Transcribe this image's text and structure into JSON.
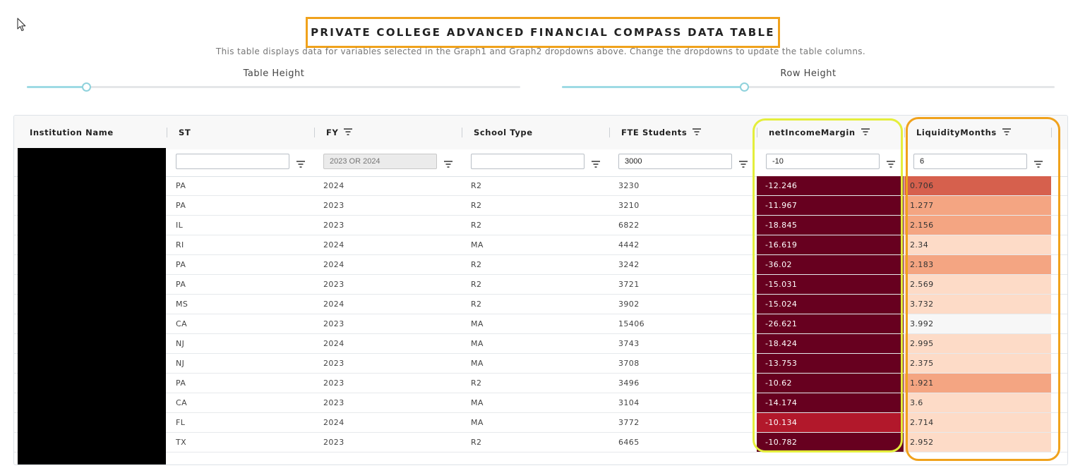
{
  "title": "PRIVATE COLLEGE ADVANCED FINANCIAL COMPASS DATA TABLE",
  "subtitle": "This table displays data for variables selected in the Graph1 and Graph2 dropdowns above. Change the dropdowns to update the table columns.",
  "sliders": {
    "table_height_label": "Table Height",
    "table_height_value": 0.12,
    "row_height_label": "Row Height",
    "row_height_value": 0.37
  },
  "columns": [
    {
      "key": "name",
      "label": "Institution Name",
      "filter_icon": false
    },
    {
      "key": "st",
      "label": "ST",
      "filter_icon": false
    },
    {
      "key": "fy",
      "label": "FY",
      "filter_icon": true
    },
    {
      "key": "type",
      "label": "School Type",
      "filter_icon": false
    },
    {
      "key": "fte",
      "label": "FTE Students",
      "filter_icon": true
    },
    {
      "key": "nim",
      "label": "netIncomeMargin",
      "filter_icon": true
    },
    {
      "key": "liq",
      "label": "LiquidityMonths",
      "filter_icon": true
    }
  ],
  "filters": {
    "st": "",
    "fy_placeholder": "2023 OR 2024",
    "type": "",
    "fte": "3000",
    "nim": "-10",
    "liq": "6"
  },
  "rows": [
    {
      "st": "PA",
      "fy": "2024",
      "type": "R2",
      "fte": "3230",
      "nim": "-12.246",
      "liq": "0.706",
      "nim_color": "#67001f",
      "liq_color": "#d6604d"
    },
    {
      "st": "PA",
      "fy": "2023",
      "type": "R2",
      "fte": "3210",
      "nim": "-11.967",
      "liq": "1.277",
      "nim_color": "#67001f",
      "liq_color": "#f4a582"
    },
    {
      "st": "IL",
      "fy": "2023",
      "type": "R2",
      "fte": "6822",
      "nim": "-18.845",
      "liq": "2.156",
      "nim_color": "#67001f",
      "liq_color": "#f4a582"
    },
    {
      "st": "RI",
      "fy": "2024",
      "type": "MA",
      "fte": "4442",
      "nim": "-16.619",
      "liq": "2.34",
      "nim_color": "#67001f",
      "liq_color": "#fddbc7"
    },
    {
      "st": "PA",
      "fy": "2024",
      "type": "R2",
      "fte": "3242",
      "nim": "-36.02",
      "liq": "2.183",
      "nim_color": "#67001f",
      "liq_color": "#f4a582"
    },
    {
      "st": "PA",
      "fy": "2023",
      "type": "R2",
      "fte": "3721",
      "nim": "-15.031",
      "liq": "2.569",
      "nim_color": "#67001f",
      "liq_color": "#fddbc7"
    },
    {
      "st": "MS",
      "fy": "2024",
      "type": "R2",
      "fte": "3902",
      "nim": "-15.024",
      "liq": "3.732",
      "nim_color": "#67001f",
      "liq_color": "#fddbc7"
    },
    {
      "st": "CA",
      "fy": "2023",
      "type": "MA",
      "fte": "15406",
      "nim": "-26.621",
      "liq": "3.992",
      "nim_color": "#67001f",
      "liq_color": "#f7f7f7"
    },
    {
      "st": "NJ",
      "fy": "2024",
      "type": "MA",
      "fte": "3743",
      "nim": "-18.424",
      "liq": "2.995",
      "nim_color": "#67001f",
      "liq_color": "#fddbc7"
    },
    {
      "st": "NJ",
      "fy": "2023",
      "type": "MA",
      "fte": "3708",
      "nim": "-13.753",
      "liq": "2.375",
      "nim_color": "#67001f",
      "liq_color": "#fddbc7"
    },
    {
      "st": "PA",
      "fy": "2023",
      "type": "R2",
      "fte": "3496",
      "nim": "-10.62",
      "liq": "1.921",
      "nim_color": "#67001f",
      "liq_color": "#f4a582"
    },
    {
      "st": "CA",
      "fy": "2023",
      "type": "MA",
      "fte": "3104",
      "nim": "-14.174",
      "liq": "3.6",
      "nim_color": "#67001f",
      "liq_color": "#fddbc7"
    },
    {
      "st": "FL",
      "fy": "2024",
      "type": "MA",
      "fte": "3772",
      "nim": "-10.134",
      "liq": "2.714",
      "nim_color": "#b2182b",
      "liq_color": "#fddbc7"
    },
    {
      "st": "TX",
      "fy": "2023",
      "type": "R2",
      "fte": "6465",
      "nim": "-10.782",
      "liq": "2.952",
      "nim_color": "#67001f",
      "liq_color": "#fddbc7"
    }
  ]
}
